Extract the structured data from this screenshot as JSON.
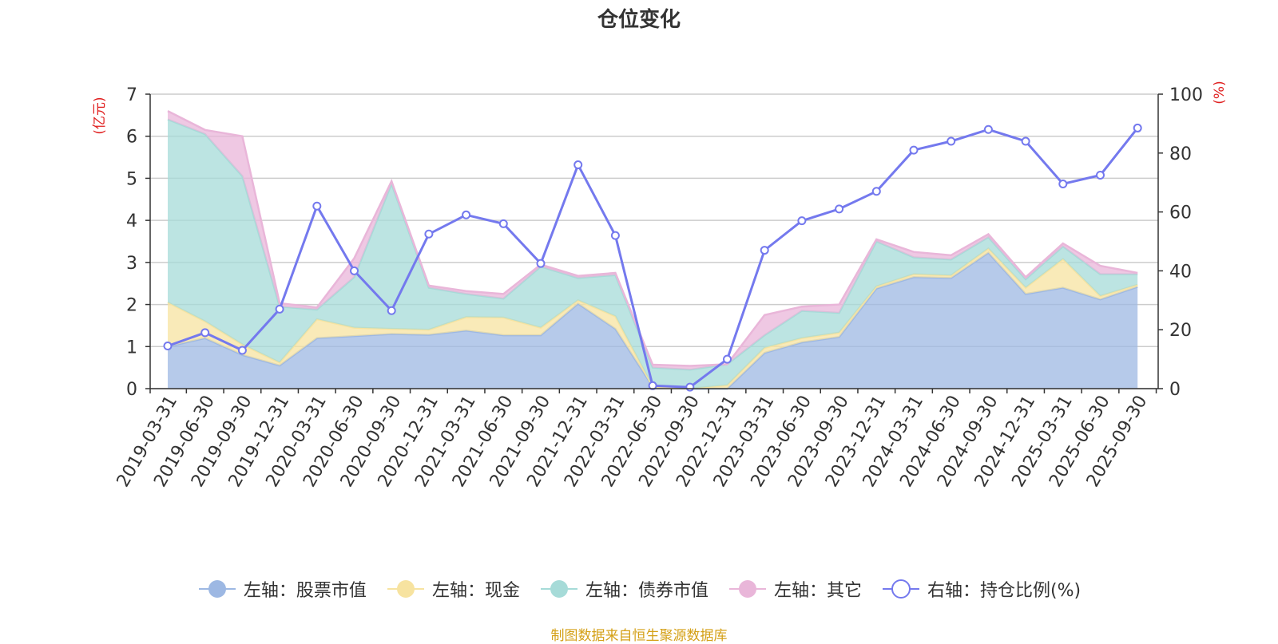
{
  "chart_data": {
    "type": "area",
    "title": "仓位变化",
    "left_unit": "(亿元)",
    "right_unit": "(%)",
    "left_ylim": [
      0,
      7
    ],
    "left_ticks": [
      0,
      1,
      2,
      3,
      4,
      5,
      6,
      7
    ],
    "right_ylim": [
      0,
      100
    ],
    "right_ticks": [
      0,
      20,
      40,
      60,
      80,
      100
    ],
    "categories": [
      "2019-03-31",
      "2019-06-30",
      "2019-09-30",
      "2019-12-31",
      "2020-03-31",
      "2020-06-30",
      "2020-09-30",
      "2020-12-31",
      "2021-03-31",
      "2021-06-30",
      "2021-09-30",
      "2021-12-31",
      "2022-03-31",
      "2022-06-30",
      "2022-09-30",
      "2022-12-31",
      "2023-03-31",
      "2023-06-30",
      "2023-09-30",
      "2023-12-31",
      "2024-03-31",
      "2024-06-30",
      "2024-09-30",
      "2024-12-31",
      "2025-03-31",
      "2025-06-30",
      "2025-09-30"
    ],
    "series": [
      {
        "name": "左轴：股票市值",
        "axis": "left",
        "kind": "stacked-area",
        "color": "#9db8e3",
        "values": [
          1.0,
          1.2,
          0.8,
          0.55,
          1.2,
          1.25,
          1.3,
          1.28,
          1.38,
          1.27,
          1.27,
          2.02,
          1.42,
          0.05,
          0.0,
          0.0,
          0.85,
          1.1,
          1.23,
          2.38,
          2.65,
          2.63,
          3.23,
          2.25,
          2.4,
          2.12,
          2.42
        ]
      },
      {
        "name": "左轴：现金",
        "axis": "left",
        "kind": "stacked-area",
        "color": "#f7e3a0",
        "values": [
          1.05,
          0.4,
          0.25,
          0.07,
          0.45,
          0.2,
          0.12,
          0.12,
          0.32,
          0.42,
          0.18,
          0.08,
          0.3,
          0.0,
          0.0,
          0.08,
          0.12,
          0.1,
          0.1,
          0.05,
          0.07,
          0.06,
          0.1,
          0.15,
          0.68,
          0.08,
          0.05
        ]
      },
      {
        "name": "左轴：债券市值",
        "axis": "left",
        "kind": "stacked-area",
        "color": "#a6dbd8",
        "values": [
          4.35,
          4.45,
          4.0,
          1.33,
          0.23,
          1.2,
          3.45,
          1.0,
          0.55,
          0.45,
          1.45,
          0.53,
          0.98,
          0.45,
          0.45,
          0.5,
          0.3,
          0.65,
          0.47,
          1.07,
          0.4,
          0.38,
          0.27,
          0.2,
          0.3,
          0.52,
          0.25
        ]
      },
      {
        "name": "左轴：其它",
        "axis": "left",
        "kind": "stacked-area",
        "color": "#e9b6d9",
        "values": [
          0.2,
          0.1,
          0.95,
          0.08,
          0.05,
          0.45,
          0.06,
          0.05,
          0.07,
          0.11,
          0.05,
          0.05,
          0.05,
          0.07,
          0.09,
          0.0,
          0.48,
          0.1,
          0.2,
          0.05,
          0.13,
          0.1,
          0.07,
          0.05,
          0.07,
          0.2,
          0.03
        ]
      },
      {
        "name": "右轴：持仓比例(%)",
        "axis": "right",
        "kind": "line",
        "color": "#7479ee",
        "values": [
          14.5,
          19,
          13,
          27,
          62,
          40,
          26.5,
          52.5,
          59,
          56,
          42.5,
          76,
          52,
          1,
          0.5,
          10,
          47,
          57,
          61,
          67,
          81,
          84,
          88,
          84,
          69.5,
          72.5,
          88.5
        ]
      }
    ]
  },
  "legend": [
    {
      "label": "左轴：股票市值",
      "icon": "filled-circle-icon",
      "color": "#9db8e3"
    },
    {
      "label": "左轴：现金",
      "icon": "filled-circle-icon",
      "color": "#f7e3a0"
    },
    {
      "label": "左轴：债券市值",
      "icon": "filled-circle-icon",
      "color": "#a6dbd8"
    },
    {
      "label": "左轴：其它",
      "icon": "filled-circle-icon",
      "color": "#e9b6d9"
    },
    {
      "label": "右轴：持仓比例(%)",
      "icon": "hollow-circle-icon",
      "color": "#7479ee"
    }
  ],
  "footer": {
    "source": "制图数据来自恒生聚源数据库"
  }
}
